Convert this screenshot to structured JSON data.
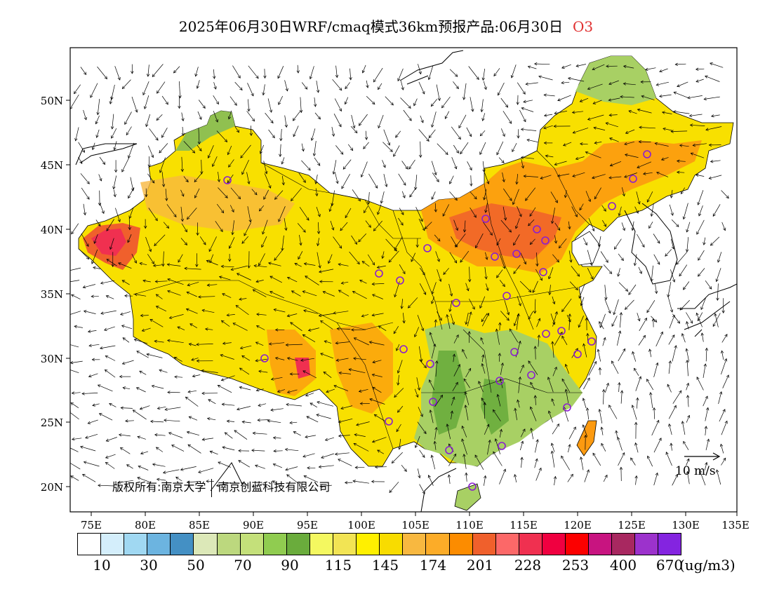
{
  "title": {
    "main": "2025年06月30日WRF/cmaq模式36km预报产品:06月30日",
    "variable": "O3"
  },
  "map": {
    "lat_ticks": [
      "50N",
      "45N",
      "40N",
      "35N",
      "30N",
      "25N",
      "20N"
    ],
    "lon_ticks": [
      "75E",
      "80E",
      "85E",
      "90E",
      "95E",
      "100E",
      "105E",
      "110E",
      "115E",
      "120E",
      "125E",
      "130E",
      "135E"
    ],
    "extent": {
      "lon_min": 73,
      "lon_max": 135,
      "lat_min": 18,
      "lat_max": 54
    },
    "copyright_left": "版权所有:南京大学",
    "copyright_right": "南京创蓝科技有限公司",
    "wind_reference": "10 m/s"
  },
  "colorbar": {
    "colors": [
      "#ffffff",
      "#d4eefb",
      "#a0d8f2",
      "#6cb4e0",
      "#4490c4",
      "#dce8b8",
      "#bcd87e",
      "#c4e07a",
      "#90cc50",
      "#6aac3c",
      "#f4f860",
      "#f2e454",
      "#fff000",
      "#f8dc00",
      "#f8b840",
      "#fcac28",
      "#fc8c00",
      "#f0602c",
      "#fc6868",
      "#f03050",
      "#f00040",
      "#fc0000",
      "#c81480",
      "#a82860",
      "#9c32cc",
      "#8424e0"
    ],
    "labels": [
      "10",
      "30",
      "50",
      "70",
      "90",
      "115",
      "145",
      "174",
      "201",
      "228",
      "253",
      "400",
      "670"
    ],
    "unit": "(ug/m3)"
  }
}
